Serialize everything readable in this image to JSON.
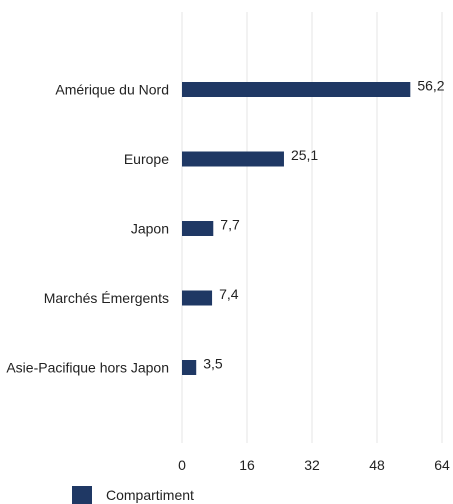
{
  "chart_data": {
    "type": "bar",
    "orientation": "horizontal",
    "categories": [
      "Amérique du Nord",
      "Europe",
      "Japon",
      "Marchés Émergents",
      "Asie-Pacifique hors Japon"
    ],
    "series": [
      {
        "name": "Compartiment",
        "values": [
          56.2,
          25.1,
          7.7,
          7.4,
          3.5
        ],
        "value_labels": [
          "56,2",
          "25,1",
          "7,7",
          "7,4",
          "3,5"
        ],
        "color": "#1f3864"
      }
    ],
    "xlim": [
      0,
      64
    ],
    "x_ticks": [
      0,
      16,
      32,
      48,
      64
    ],
    "x_tick_labels": [
      "0",
      "16",
      "32",
      "48",
      "64"
    ],
    "grid": "vertical",
    "legend": "bottom-left"
  },
  "colors": {
    "bar": "#1f3864",
    "grid": "#e6e6e6",
    "text": "#222222"
  }
}
